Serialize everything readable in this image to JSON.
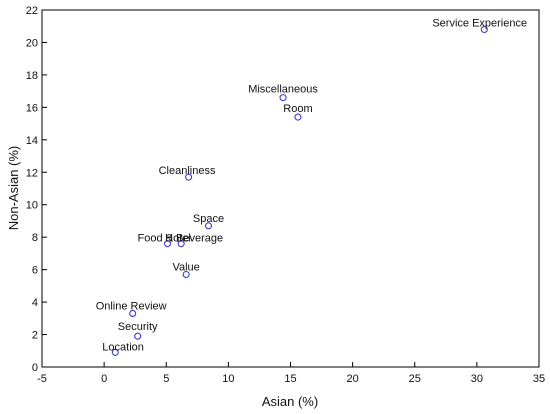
{
  "chart_data": {
    "type": "scatter",
    "title": "",
    "xlabel": "Asian (%)",
    "ylabel": "Non-Asian (%)",
    "xlim": [
      -5,
      35
    ],
    "ylim": [
      0,
      22
    ],
    "xticks": [
      -5,
      0,
      5,
      10,
      15,
      20,
      25,
      30,
      35
    ],
    "yticks": [
      0,
      2,
      4,
      6,
      8,
      10,
      12,
      14,
      16,
      18,
      20,
      22
    ],
    "grid": false,
    "legend": "none",
    "marker_color": "#3a3ad0",
    "points": [
      {
        "label": "Service Experience",
        "x": 30.6,
        "y": 20.8
      },
      {
        "label": "Miscellaneous",
        "x": 14.4,
        "y": 16.6
      },
      {
        "label": "Room",
        "x": 15.6,
        "y": 15.4
      },
      {
        "label": "Cleanliness",
        "x": 6.8,
        "y": 11.7
      },
      {
        "label": "Space",
        "x": 8.4,
        "y": 8.7
      },
      {
        "label": "Food & Beverage",
        "x": 5.1,
        "y": 7.6
      },
      {
        "label": "Hotel",
        "x": 6.2,
        "y": 7.6
      },
      {
        "label": "Value",
        "x": 6.6,
        "y": 5.7
      },
      {
        "label": "Online Review",
        "x": 2.3,
        "y": 3.3
      },
      {
        "label": "Security",
        "x": 2.7,
        "y": 1.9
      },
      {
        "label": "Location",
        "x": 0.9,
        "y": 0.9
      }
    ]
  }
}
